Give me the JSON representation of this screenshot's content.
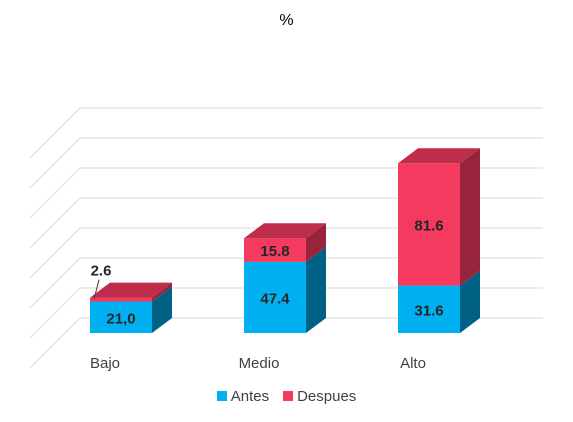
{
  "chart_data": {
    "type": "bar",
    "stacked": true,
    "three_d": true,
    "title": "%",
    "xlabel": "",
    "ylabel": "",
    "categories": [
      "Bajo",
      "Medio",
      "Alto"
    ],
    "ylim": [
      0,
      140
    ],
    "grid": true,
    "legend_position": "bottom",
    "series": [
      {
        "name": "Antes",
        "values": [
          21.0,
          47.4,
          31.6
        ],
        "labels": [
          "21,0",
          "47.4",
          "31.6"
        ],
        "color": "#00b0f0"
      },
      {
        "name": "Despues",
        "values": [
          2.6,
          15.8,
          81.6
        ],
        "labels": [
          "2.6",
          "15.8",
          "81.6"
        ],
        "color": "#f43a5f"
      }
    ]
  }
}
